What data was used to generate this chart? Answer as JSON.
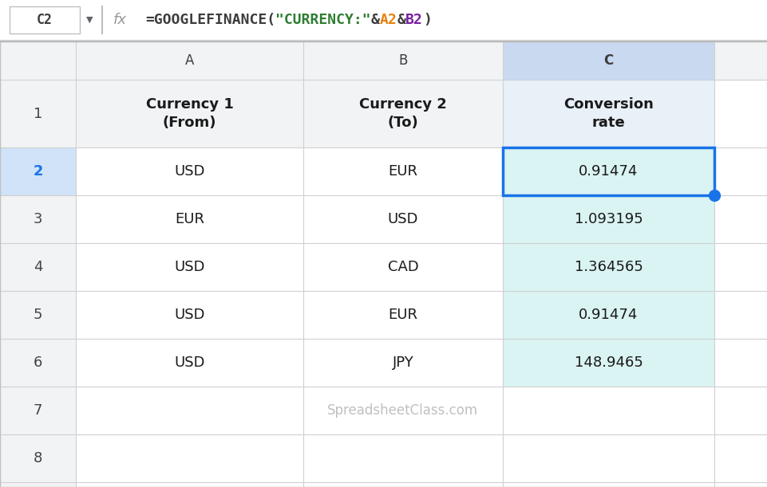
{
  "formula_bar": {
    "cell_ref": "C2",
    "formula_text_parts": [
      {
        "text": "=GOOGLEFINANCE(",
        "color": "#3c3c3c"
      },
      {
        "text": "\"CURRENCY:\"",
        "color": "#2e7d32"
      },
      {
        "text": "&",
        "color": "#3c3c3c"
      },
      {
        "text": "A2",
        "color": "#e6820e"
      },
      {
        "text": "&",
        "color": "#3c3c3c"
      },
      {
        "text": "B2",
        "color": "#7b1fa2"
      },
      {
        "text": ")",
        "color": "#3c3c3c"
      }
    ]
  },
  "col_headers": [
    "",
    "A",
    "B",
    "C"
  ],
  "col_header_bg": "#f1f3f4",
  "col_c_header_bg": "#c8d9f0",
  "row_num_bg": "#f1f3f4",
  "row2_num_bg": "#d0e3f8",
  "header_row_bg": "#f1f3f4",
  "col_c_data_bg": "#daf3f3",
  "grid_color": "#d0d0d0",
  "data": [
    [
      "Currency 1\n(From)",
      "Currency 2\n(To)",
      "Conversion\nrate"
    ],
    [
      "USD",
      "EUR",
      "0.91474"
    ],
    [
      "EUR",
      "USD",
      "1.093195"
    ],
    [
      "USD",
      "CAD",
      "1.364565"
    ],
    [
      "USD",
      "EUR",
      "0.91474"
    ],
    [
      "USD",
      "JPY",
      "148.9465"
    ],
    [
      "SpreadsheetClass.com",
      "",
      ""
    ],
    [
      "",
      "",
      ""
    ]
  ],
  "selected_cell_border_color": "#1a73e8",
  "handle_dot_color": "#1a73e8",
  "watermark_color": "#c0c0c0",
  "fig_bg": "#ffffff",
  "formula_bar_bg": "#ffffff",
  "formula_bar_border": "#e0e0e0",
  "cell_ref_text": "C2",
  "fx_color": "#999999"
}
